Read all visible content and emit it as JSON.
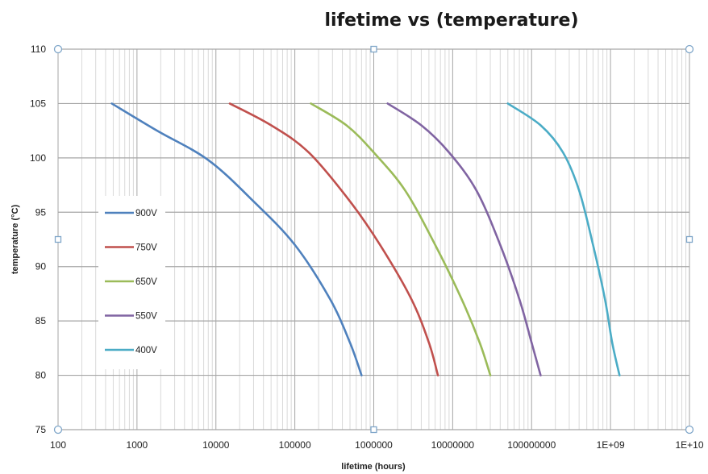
{
  "chart_data": {
    "type": "line",
    "title": "lifetime vs (temperature)",
    "xlabel": "lifetime (hours)",
    "ylabel": "temperature (°C)",
    "xscale": "log",
    "xlim": [
      100,
      10000000000
    ],
    "ylim": [
      75,
      110
    ],
    "x_tick_labels": [
      "100",
      "1000",
      "10000",
      "100000",
      "1000000",
      "10000000",
      "100000000",
      "1E+09",
      "1E+10"
    ],
    "y_tick_labels": [
      "75",
      "80",
      "85",
      "90",
      "95",
      "100",
      "105",
      "110"
    ],
    "grid": true,
    "legend_position": "left",
    "series": [
      {
        "name": "900V",
        "color": "#4f81bd",
        "points": [
          [
            480,
            105
          ],
          [
            1800,
            102.5
          ],
          [
            8000,
            99.8
          ],
          [
            30000,
            96
          ],
          [
            100000,
            92
          ],
          [
            280000,
            87
          ],
          [
            500000,
            83
          ],
          [
            700000,
            80
          ]
        ]
      },
      {
        "name": "750V",
        "color": "#c0504d",
        "points": [
          [
            15000,
            105
          ],
          [
            50000,
            103
          ],
          [
            150000,
            100.5
          ],
          [
            500000,
            96
          ],
          [
            1200000,
            92
          ],
          [
            3000000,
            87
          ],
          [
            5000000,
            83
          ],
          [
            6500000,
            80
          ]
        ]
      },
      {
        "name": "650V",
        "color": "#9bbb59",
        "points": [
          [
            160000,
            105
          ],
          [
            450000,
            103
          ],
          [
            1000000,
            100.5
          ],
          [
            2500000,
            97
          ],
          [
            6000000,
            92
          ],
          [
            13000000,
            87
          ],
          [
            22000000,
            83
          ],
          [
            30000000,
            80
          ]
        ]
      },
      {
        "name": "550V",
        "color": "#8064a2",
        "points": [
          [
            1500000,
            105
          ],
          [
            4000000,
            103
          ],
          [
            9000000,
            100.5
          ],
          [
            20000000,
            97
          ],
          [
            40000000,
            92
          ],
          [
            70000000,
            87
          ],
          [
            100000000,
            83
          ],
          [
            130000000,
            80
          ]
        ]
      },
      {
        "name": "400V",
        "color": "#4bacc6",
        "points": [
          [
            50000000,
            105
          ],
          [
            130000000,
            103
          ],
          [
            250000000,
            100.5
          ],
          [
            400000000,
            97
          ],
          [
            600000000,
            92
          ],
          [
            850000000,
            87
          ],
          [
            1050000000,
            83
          ],
          [
            1300000000,
            80
          ]
        ]
      }
    ]
  }
}
